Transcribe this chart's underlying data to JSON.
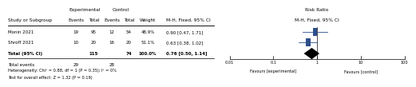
{
  "studies": [
    "Monin 2021",
    "Shroff 2021"
  ],
  "exp_events": [
    19,
    10
  ],
  "exp_total": [
    95,
    20
  ],
  "ctrl_events": [
    12,
    16
  ],
  "ctrl_total": [
    54,
    20
  ],
  "weights": [
    "48.9%",
    "51.1%"
  ],
  "rr": [
    0.9,
    0.63
  ],
  "rr_lo": [
    0.47,
    0.38
  ],
  "rr_hi": [
    1.71,
    1.02
  ],
  "rr_str": [
    "0.90 [0.47, 1.71]",
    "0.63 [0.38, 1.02]"
  ],
  "total_exp_total": 115,
  "total_ctrl_total": 74,
  "total_exp_events": 29,
  "total_ctrl_events": 28,
  "total_rr": 0.76,
  "total_rr_lo": 0.5,
  "total_rr_hi": 1.14,
  "total_rr_str": "0.76 [0.50, 1.14]",
  "total_weight": "100.0%",
  "heterogeneity_text": "Heterogeneity: Chi² = 0.88, df = 1 (P = 0.35); I² = 0%",
  "overall_text": "Test for overall effect: Z = 1.32 (P = 0.19)",
  "forest_header": "Risk Ratio",
  "forest_header2": "M-H, Fixed, 95% CI",
  "rr_col_header1": "Risk Ratio",
  "rr_col_header2": "M-H, Fixed, 95% CI",
  "axis_ticks": [
    0.01,
    0.1,
    1,
    10,
    100
  ],
  "axis_labels": [
    "0.01",
    "0.1",
    "1",
    "10",
    "100"
  ],
  "xlabel_left": "Favours [experimental]",
  "xlabel_right": "Favours [control]",
  "square_color": "#2e4f8a",
  "diamond_color": "#000000",
  "text_color": "#000000",
  "bg_color": "#ffffff"
}
